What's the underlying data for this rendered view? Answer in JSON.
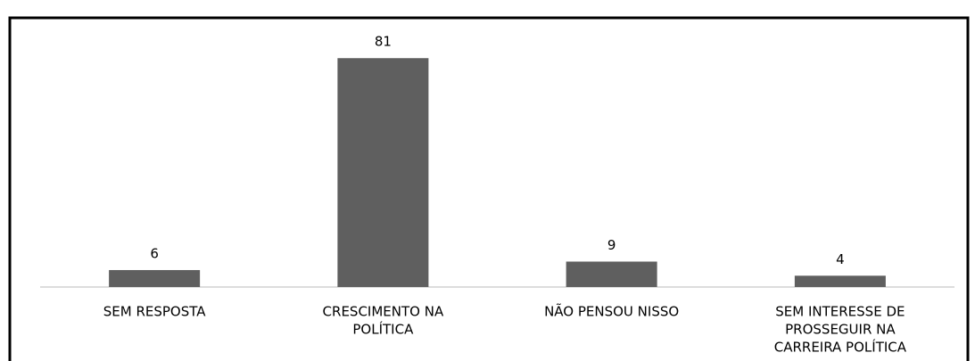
{
  "chart_data": {
    "type": "bar",
    "categories": [
      [
        "SEM RESPOSTA"
      ],
      [
        "CRESCIMENTO NA",
        "POLÍTICA"
      ],
      [
        "NÃO PENSOU NISSO"
      ],
      [
        "SEM INTERESSE DE",
        "PROSSEGUIR NA",
        "CARREIRA POLÍTICA"
      ]
    ],
    "values": [
      6,
      81,
      9,
      4
    ],
    "color": "#5f5f5f"
  }
}
